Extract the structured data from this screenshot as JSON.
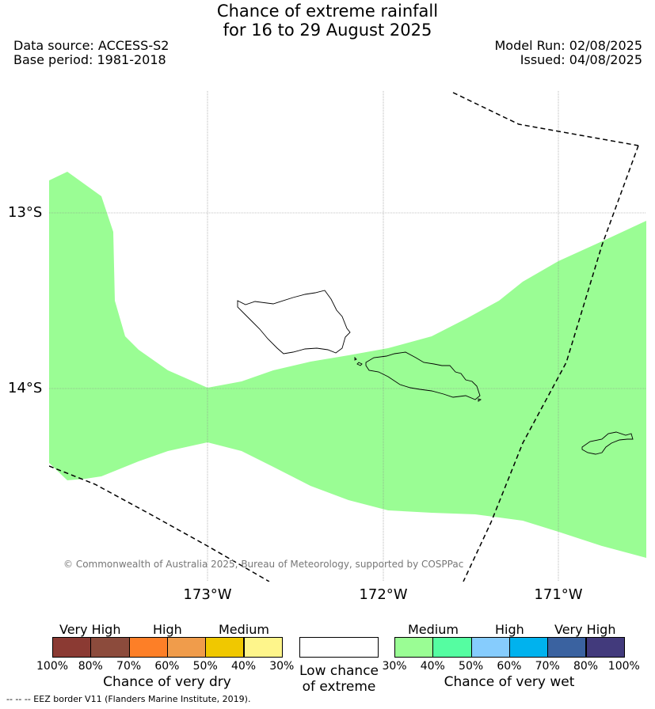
{
  "title_line1": "Chance of extreme rainfall",
  "title_line2": "for 16 to 29 August 2025",
  "data_source": "Data source: ACCESS-S2",
  "base_period": "Base period: 1981-2018",
  "model_run": "Model Run: 02/08/2025",
  "issued": "Issued: 04/08/2025",
  "lat_labels": [
    "13°S",
    "14°S"
  ],
  "lon_labels": [
    "173°W",
    "172°W",
    "171°W"
  ],
  "copyright": "© Commonwealth of Australia 2025, Bureau of Meteorology, supported by COSPPac",
  "dry_legend": {
    "groups": [
      "Very High",
      "High",
      "Medium"
    ],
    "colors": [
      "#8b3a33",
      "#8c4b3c",
      "#fd7f27",
      "#f09c4b",
      "#f0c800",
      "#fef58b"
    ],
    "ticks": [
      "100%",
      "80%",
      "70%",
      "60%",
      "50%",
      "40%",
      "30%"
    ],
    "title": "Chance of very dry"
  },
  "low_legend": {
    "color": "#ffffff",
    "title_line1": "Low chance",
    "title_line2": "of extreme"
  },
  "wet_legend": {
    "groups": [
      "Medium",
      "High",
      "Very High"
    ],
    "colors": [
      "#9afd94",
      "#55fda1",
      "#86ccfd",
      "#00b2ee",
      "#3a62a0",
      "#423a7c"
    ],
    "ticks": [
      "30%",
      "40%",
      "50%",
      "60%",
      "70%",
      "80%",
      "100%"
    ],
    "title": "Chance of very wet"
  },
  "footer": "--  --  -- EEZ border V11 (Flanders Marine Institute, 2019).",
  "map_colors": {
    "medium_wet_fill": "#9afd94",
    "grid": "#888888",
    "coast": "#000000",
    "eez": "#000000"
  }
}
